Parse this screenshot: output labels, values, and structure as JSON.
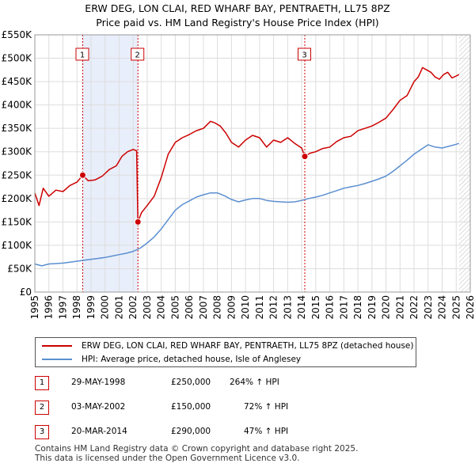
{
  "chart_data": {
    "type": "line",
    "title": "ERW DEG, LON CLAI, RED WHARF BAY, PENTRAETH, LL75 8PZ",
    "subtitle": "Price paid vs. HM Land Registry's House Price Index (HPI)",
    "xlabel": "",
    "ylabel": "",
    "xlim": [
      1995,
      2026
    ],
    "ylim": [
      0,
      550000
    ],
    "x_ticks": [
      1995,
      1996,
      1997,
      1998,
      1999,
      2000,
      2001,
      2002,
      2003,
      2004,
      2005,
      2006,
      2007,
      2008,
      2009,
      2010,
      2011,
      2012,
      2013,
      2014,
      2015,
      2016,
      2017,
      2018,
      2019,
      2020,
      2021,
      2022,
      2023,
      2024,
      2025,
      2026
    ],
    "y_ticks": [
      {
        "value": 0,
        "label": "£0"
      },
      {
        "value": 50000,
        "label": "£50K"
      },
      {
        "value": 100000,
        "label": "£100K"
      },
      {
        "value": 150000,
        "label": "£150K"
      },
      {
        "value": 200000,
        "label": "£200K"
      },
      {
        "value": 250000,
        "label": "£250K"
      },
      {
        "value": 300000,
        "label": "£300K"
      },
      {
        "value": 350000,
        "label": "£350K"
      },
      {
        "value": 400000,
        "label": "£400K"
      },
      {
        "value": 450000,
        "label": "£450K"
      },
      {
        "value": 500000,
        "label": "£500K"
      },
      {
        "value": 550000,
        "label": "£550K"
      }
    ],
    "series": [
      {
        "name": "ERW DEG, LON CLAI, RED WHARF BAY, PENTRAETH, LL75 8PZ (detached house)",
        "color": "#cc0000",
        "x": [
          1995.0,
          1995.3,
          1995.6,
          1996.0,
          1996.5,
          1997.0,
          1997.5,
          1998.0,
          1998.41,
          1998.8,
          1999.3,
          1999.8,
          2000.3,
          2000.8,
          2001.2,
          2001.6,
          2002.0,
          2002.25,
          2002.34,
          2002.6,
          2003.0,
          2003.5,
          2004.0,
          2004.5,
          2005.0,
          2005.5,
          2006.0,
          2006.5,
          2007.0,
          2007.5,
          2007.8,
          2008.2,
          2008.6,
          2009.0,
          2009.5,
          2010.0,
          2010.5,
          2011.0,
          2011.5,
          2012.0,
          2012.5,
          2013.0,
          2013.5,
          2014.0,
          2014.22,
          2014.6,
          2015.0,
          2015.5,
          2016.0,
          2016.5,
          2017.0,
          2017.5,
          2018.0,
          2018.5,
          2019.0,
          2019.5,
          2020.0,
          2020.5,
          2021.0,
          2021.5,
          2022.0,
          2022.3,
          2022.6,
          2022.9,
          2023.2,
          2023.5,
          2023.8,
          2024.1,
          2024.4,
          2024.7,
          2025.0,
          2025.2
        ],
        "values": [
          212000,
          185000,
          222000,
          205000,
          218000,
          215000,
          228000,
          235000,
          250000,
          238000,
          240000,
          248000,
          262000,
          270000,
          290000,
          300000,
          305000,
          302000,
          150000,
          170000,
          185000,
          205000,
          245000,
          295000,
          320000,
          330000,
          337000,
          345000,
          350000,
          365000,
          362000,
          355000,
          340000,
          320000,
          310000,
          325000,
          335000,
          330000,
          310000,
          325000,
          320000,
          330000,
          318000,
          308000,
          290000,
          297000,
          300000,
          307000,
          310000,
          322000,
          330000,
          333000,
          345000,
          350000,
          355000,
          363000,
          372000,
          390000,
          410000,
          420000,
          450000,
          460000,
          480000,
          475000,
          470000,
          460000,
          455000,
          465000,
          470000,
          458000,
          462000,
          465000
        ]
      },
      {
        "name": "HPI: Average price, detached house, Isle of Anglesey",
        "color": "#5b8fd0",
        "x": [
          1995.0,
          1995.5,
          1996.0,
          1996.5,
          1997.0,
          1997.5,
          1998.0,
          1998.5,
          1999.0,
          1999.5,
          2000.0,
          2000.5,
          2001.0,
          2001.5,
          2002.0,
          2002.5,
          2003.0,
          2003.5,
          2004.0,
          2004.5,
          2005.0,
          2005.5,
          2006.0,
          2006.5,
          2007.0,
          2007.5,
          2008.0,
          2008.5,
          2009.0,
          2009.5,
          2010.0,
          2010.5,
          2011.0,
          2011.5,
          2012.0,
          2012.5,
          2013.0,
          2013.5,
          2014.0,
          2014.5,
          2015.0,
          2015.5,
          2016.0,
          2016.5,
          2017.0,
          2017.5,
          2018.0,
          2018.5,
          2019.0,
          2019.5,
          2020.0,
          2020.5,
          2021.0,
          2021.5,
          2022.0,
          2022.5,
          2023.0,
          2023.5,
          2024.0,
          2024.5,
          2025.0,
          2025.2
        ],
        "values": [
          60000,
          56000,
          60000,
          61000,
          62000,
          64000,
          66000,
          68000,
          70000,
          72000,
          74000,
          77000,
          80000,
          83000,
          87000,
          94000,
          105000,
          118000,
          135000,
          155000,
          175000,
          187000,
          195000,
          203000,
          208000,
          212000,
          212000,
          206000,
          198000,
          193000,
          197000,
          200000,
          200000,
          196000,
          194000,
          193000,
          192000,
          193000,
          196000,
          200000,
          203000,
          207000,
          212000,
          217000,
          222000,
          225000,
          228000,
          232000,
          237000,
          242000,
          248000,
          258000,
          270000,
          282000,
          295000,
          305000,
          315000,
          310000,
          308000,
          312000,
          316000,
          318000
        ]
      }
    ],
    "transactions": [
      {
        "label": "1",
        "x": 1998.41,
        "value": 250000
      },
      {
        "label": "2",
        "x": 2002.34,
        "value": 150000
      },
      {
        "label": "3",
        "x": 2014.22,
        "value": 290000
      }
    ],
    "shaded_ranges": [
      [
        1998.41,
        2002.34
      ]
    ],
    "future_hatch_from": 2025.2
  },
  "header": {
    "title": "ERW DEG, LON CLAI, RED WHARF BAY, PENTRAETH, LL75 8PZ",
    "subtitle": "Price paid vs. HM Land Registry's House Price Index (HPI)"
  },
  "legend": {
    "items": [
      {
        "label": "ERW DEG, LON CLAI, RED WHARF BAY, PENTRAETH, LL75 8PZ (detached house)",
        "color": "#cc0000"
      },
      {
        "label": "HPI: Average price, detached house, Isle of Anglesey",
        "color": "#5b8fd0"
      }
    ]
  },
  "table": {
    "rows": [
      {
        "num": "1",
        "date": "29-MAY-1998",
        "price": "£250,000",
        "hpi": "264% ↑ HPI"
      },
      {
        "num": "2",
        "date": "03-MAY-2002",
        "price": "£150,000",
        "hpi": "72% ↑ HPI"
      },
      {
        "num": "3",
        "date": "20-MAR-2014",
        "price": "£290,000",
        "hpi": "47% ↑ HPI"
      }
    ]
  },
  "footer": {
    "line1": "Contains HM Land Registry data © Crown copyright and database right 2025.",
    "line2": "This data is licensed under the Open Government Licence v3.0."
  }
}
